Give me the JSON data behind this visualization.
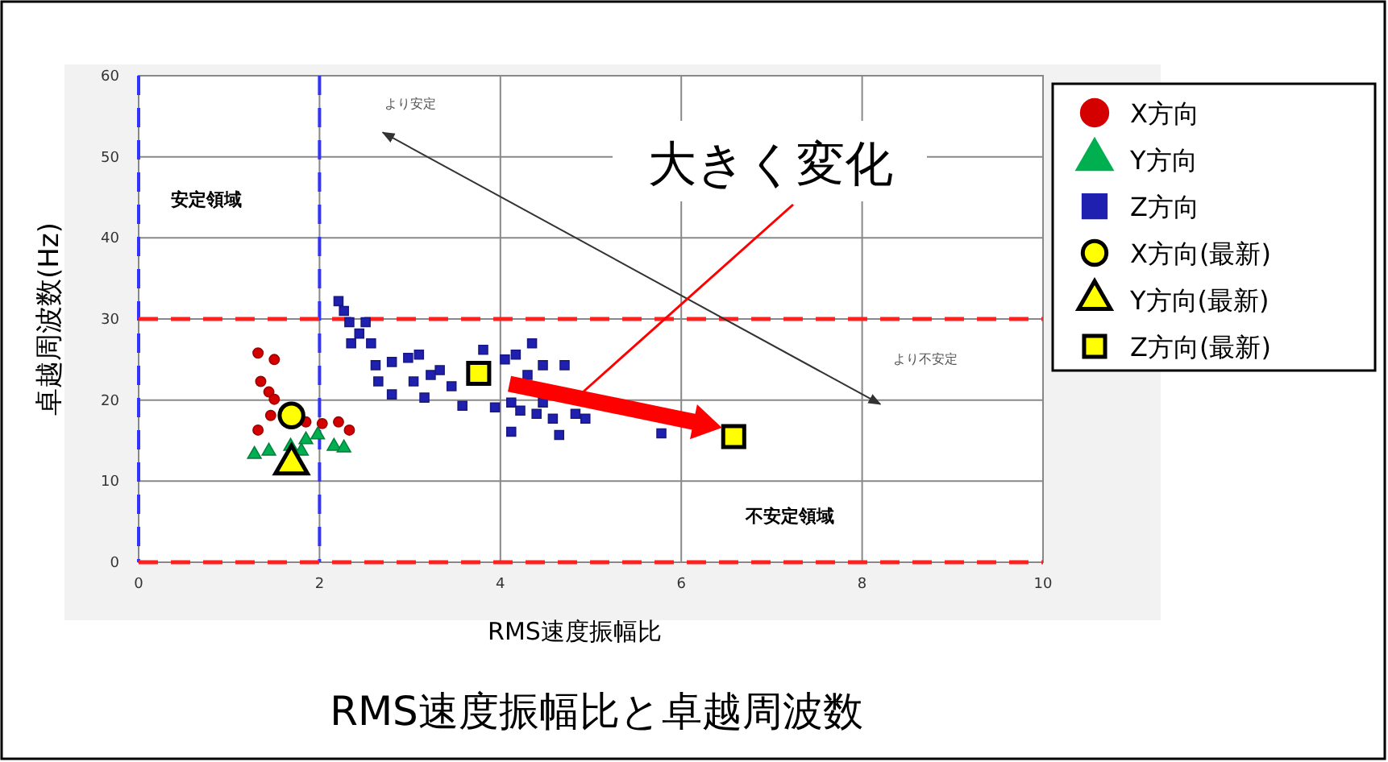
{
  "chart_data": {
    "type": "scatter",
    "title": "RMS速度振幅比と卓越周波数",
    "xlabel": "RMS速度振幅比",
    "ylabel": "卓越周波数(Hz)",
    "xlim": [
      0,
      10
    ],
    "xticks": [
      0,
      2,
      4,
      6,
      8,
      10
    ],
    "ylim": [
      0,
      60
    ],
    "yticks": [
      0,
      10,
      20,
      30,
      40,
      50,
      60
    ],
    "grid": true,
    "legend": "top right",
    "series": [
      {
        "name": "X方向",
        "color": "#d40000",
        "marker": "circle",
        "x": [
          1.32,
          1.5,
          1.35,
          1.44,
          1.5,
          1.46,
          1.32,
          1.85,
          2.03,
          2.21,
          2.33
        ],
        "values": [
          25.8,
          25.0,
          22.3,
          21.0,
          20.1,
          18.1,
          16.3,
          17.3,
          17.1,
          17.3,
          16.3
        ]
      },
      {
        "name": "Y方向",
        "color": "#00b050",
        "marker": "triangle",
        "x": [
          1.28,
          1.44,
          1.68,
          1.8,
          1.85,
          1.98,
          2.16,
          2.27
        ],
        "values": [
          13.3,
          13.7,
          14.3,
          13.7,
          15.1,
          15.7,
          14.3,
          14.1
        ]
      },
      {
        "name": "Z方向",
        "color": "#2020b0",
        "marker": "square",
        "x": [
          2.21,
          2.27,
          2.33,
          2.51,
          2.35,
          2.44,
          2.57,
          2.62,
          2.65,
          2.8,
          2.98,
          3.1,
          3.04,
          3.16,
          2.8,
          3.23,
          3.33,
          3.46,
          3.58,
          3.81,
          3.94,
          4.05,
          4.17,
          4.35,
          4.47,
          4.71,
          4.12,
          4.22,
          4.4,
          4.58,
          4.83,
          4.94,
          4.12,
          4.65,
          4.47,
          4.3,
          5.78
        ],
        "values": [
          32.2,
          31.0,
          29.6,
          29.6,
          27.0,
          28.2,
          27.0,
          24.3,
          22.3,
          24.7,
          25.2,
          25.6,
          22.3,
          20.3,
          20.7,
          23.1,
          23.7,
          21.7,
          19.3,
          26.2,
          19.1,
          25.0,
          25.6,
          27.0,
          24.3,
          24.3,
          19.7,
          18.7,
          18.3,
          17.7,
          18.3,
          17.7,
          16.1,
          15.7,
          19.7,
          23.1,
          15.9
        ]
      },
      {
        "name": "X方向(最新)",
        "color": "#ffff00",
        "marker": "circle",
        "x": [
          1.69
        ],
        "values": [
          18.1
        ]
      },
      {
        "name": "Y方向(最新)",
        "color": "#ffff00",
        "marker": "triangle",
        "x": [
          1.69
        ],
        "values": [
          12.1
        ]
      },
      {
        "name": "Z方向(最新)",
        "color": "#ffff00",
        "marker": "square",
        "x": [
          3.76,
          6.58
        ],
        "values": [
          23.3,
          15.5
        ]
      }
    ],
    "ref_lines": [
      {
        "axis": "x",
        "value": 0,
        "color": "#3333ff",
        "line_style": "dashed"
      },
      {
        "axis": "x",
        "value": 2,
        "color": "#3333ff",
        "line_style": "dashed"
      },
      {
        "axis": "y",
        "value": 0,
        "color": "#ff2020",
        "line_style": "dashed"
      },
      {
        "axis": "y",
        "value": 30,
        "color": "#ff2020",
        "line_style": "dashed"
      }
    ],
    "annotations": [
      "大きく変化",
      "安定領域",
      "不安定領域",
      "より安定",
      "より不安定"
    ]
  }
}
